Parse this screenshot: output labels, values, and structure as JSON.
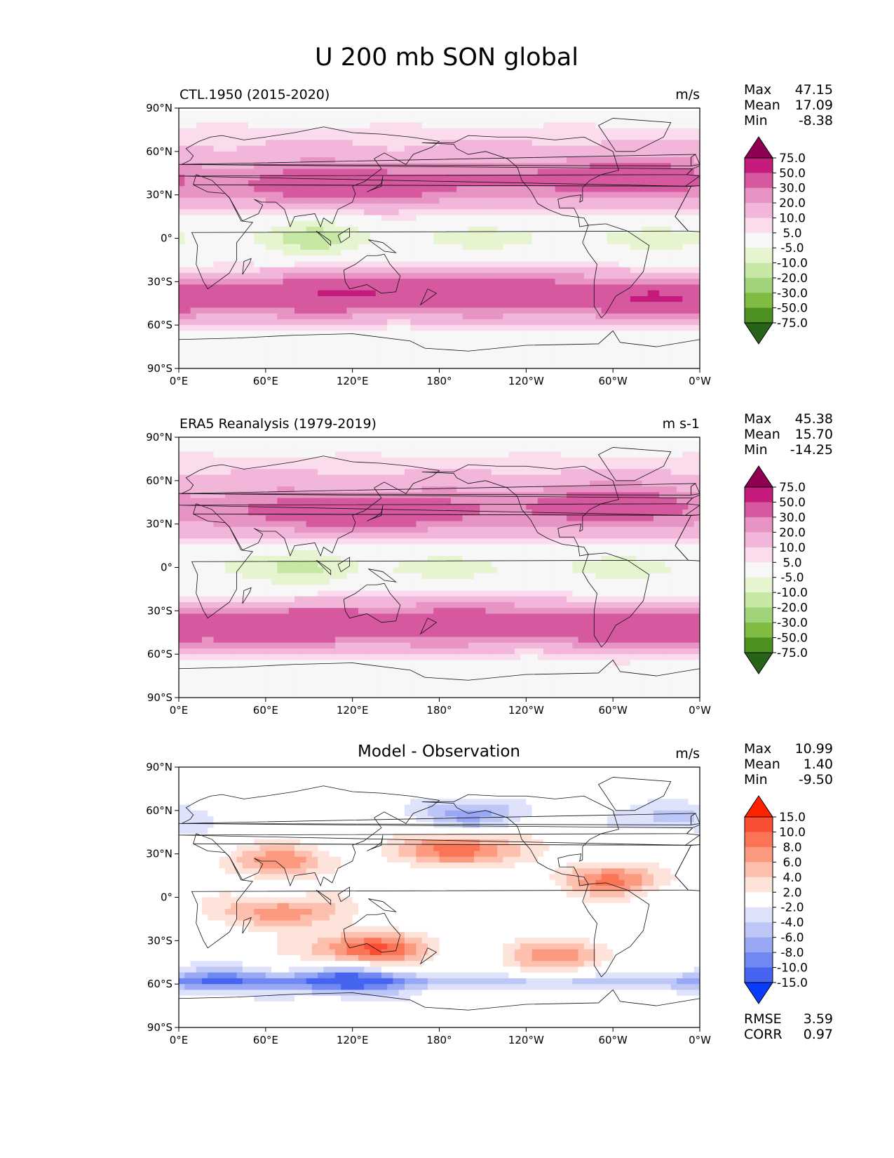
{
  "figure_title": "U 200 mb SON global",
  "chart_data": [
    {
      "type": "heatmap",
      "title": "CTL.1950 (2015-2020)",
      "units": "m/s",
      "xticks": [
        "0°E",
        "60°E",
        "120°E",
        "180°",
        "120°W",
        "60°W",
        "0°W"
      ],
      "yticks": [
        "90°N",
        "60°N",
        "30°N",
        "0°",
        "30°S",
        "60°S",
        "90°S"
      ],
      "xlim": [
        0,
        360
      ],
      "ylim": [
        -90,
        90
      ],
      "stats": [
        {
          "label": "Max",
          "value": "47.15"
        },
        {
          "label": "Mean",
          "value": "17.09"
        },
        {
          "label": "Min",
          "value": "-8.38"
        }
      ],
      "colorbar": {
        "levels": [
          "75.0",
          "50.0",
          "30.0",
          "20.0",
          "10.0",
          "5.0",
          "-5.0",
          "-10.0",
          "-20.0",
          "-30.0",
          "-50.0",
          "-75.0"
        ],
        "colors": [
          "#8e0152",
          "#c51b7d",
          "#d6589f",
          "#e794c4",
          "#f1b6da",
          "#fbdcec",
          "#f7f7f7",
          "#e6f5d0",
          "#c7e8a4",
          "#a1d47a",
          "#7fbc41",
          "#4d9221",
          "#276419"
        ]
      },
      "jets": [
        {
          "lon": 120,
          "lat": 36,
          "peak": 46
        },
        {
          "lon": 300,
          "lat": 42,
          "peak": 42
        },
        {
          "lon": 120,
          "lat": -35,
          "peak": 44
        },
        {
          "lon": 220,
          "lat": -30,
          "peak": 35
        },
        {
          "lon": 330,
          "lat": -40,
          "peak": 40
        }
      ]
    },
    {
      "type": "heatmap",
      "title": "ERA5 Reanalysis (1979-2019)",
      "units": "m s-1",
      "xticks": [
        "0°E",
        "60°E",
        "120°E",
        "180°",
        "120°W",
        "60°W",
        "0°W"
      ],
      "yticks": [
        "90°N",
        "60°N",
        "30°N",
        "0°",
        "30°S",
        "60°S",
        "90°S"
      ],
      "xlim": [
        0,
        360
      ],
      "ylim": [
        -90,
        90
      ],
      "stats": [
        {
          "label": "Max",
          "value": "45.38"
        },
        {
          "label": "Mean",
          "value": "15.70"
        },
        {
          "label": "Min",
          "value": "-14.25"
        }
      ],
      "colorbar": {
        "levels": [
          "75.0",
          "50.0",
          "30.0",
          "20.0",
          "10.0",
          "5.0",
          "-5.0",
          "-10.0",
          "-20.0",
          "-30.0",
          "-50.0",
          "-75.0"
        ],
        "colors": [
          "#8e0152",
          "#c51b7d",
          "#d6589f",
          "#e794c4",
          "#f1b6da",
          "#fbdcec",
          "#f7f7f7",
          "#e6f5d0",
          "#c7e8a4",
          "#a1d47a",
          "#7fbc41",
          "#4d9221",
          "#276419"
        ]
      },
      "jets": [
        {
          "lon": 125,
          "lat": 38,
          "peak": 44
        },
        {
          "lon": 295,
          "lat": 44,
          "peak": 40
        },
        {
          "lon": 100,
          "lat": -38,
          "peak": 40
        },
        {
          "lon": 210,
          "lat": -32,
          "peak": 32
        },
        {
          "lon": 330,
          "lat": -42,
          "peak": 38
        }
      ]
    },
    {
      "type": "heatmap",
      "title": "Model - Observation",
      "units": "m/s",
      "xticks": [
        "0°E",
        "60°E",
        "120°E",
        "180°",
        "120°W",
        "60°W",
        "0°W"
      ],
      "yticks": [
        "90°N",
        "60°N",
        "30°N",
        "0°",
        "30°S",
        "60°S",
        "90°S"
      ],
      "xlim": [
        0,
        360
      ],
      "ylim": [
        -90,
        90
      ],
      "stats": [
        {
          "label": "Max",
          "value": "10.99"
        },
        {
          "label": "Mean",
          "value": "1.40"
        },
        {
          "label": "Min",
          "value": "-9.50"
        }
      ],
      "metrics": [
        {
          "label": "RMSE",
          "value": "3.59"
        },
        {
          "label": "CORR",
          "value": "0.97"
        }
      ],
      "colorbar": {
        "levels": [
          "15.0",
          "10.0",
          "8.0",
          "6.0",
          "4.0",
          "2.0",
          "-2.0",
          "-4.0",
          "-6.0",
          "-8.0",
          "-10.0",
          "-15.0"
        ],
        "colors": [
          "#ff2200",
          "#fb4f34",
          "#fc7456",
          "#fc9a80",
          "#fdbfae",
          "#fde3da",
          "#ffffff",
          "#dee2fb",
          "#bcc6f7",
          "#98a8f4",
          "#7088f1",
          "#4565f0",
          "#0a3dfb"
        ]
      },
      "anomalies": [
        {
          "lon": 195,
          "lat": 33,
          "value": 10
        },
        {
          "lon": 70,
          "lat": 25,
          "value": 7
        },
        {
          "lon": 130,
          "lat": -36,
          "value": 11
        },
        {
          "lon": 70,
          "lat": -10,
          "value": 8
        },
        {
          "lon": 300,
          "lat": 12,
          "value": 8
        },
        {
          "lon": 265,
          "lat": -40,
          "value": 7
        },
        {
          "lon": 200,
          "lat": 58,
          "value": -7
        },
        {
          "lon": 120,
          "lat": -58,
          "value": -9
        },
        {
          "lon": 30,
          "lat": -58,
          "value": -6
        },
        {
          "lon": 340,
          "lat": 55,
          "value": -5
        }
      ]
    }
  ]
}
